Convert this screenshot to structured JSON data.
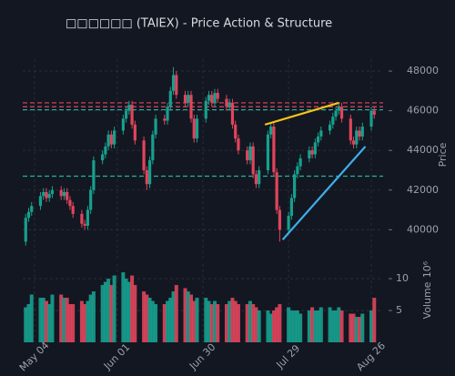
{
  "chart_data": {
    "type": "candlestick",
    "title": "□□□□□□ (TAIEX) - Price Action & Structure",
    "ylabel": "Price",
    "volume_ylabel": "Volume",
    "volume_offset": "10⁶",
    "x": [
      "05-01",
      "05-02",
      "05-03",
      "05-06",
      "05-07",
      "05-08",
      "05-09",
      "05-10",
      "05-13",
      "05-14",
      "05-15",
      "05-16",
      "05-17",
      "05-20",
      "05-21",
      "05-22",
      "05-23",
      "05-24",
      "05-27",
      "05-28",
      "05-29",
      "05-30",
      "05-31",
      "06-03",
      "06-04",
      "06-05",
      "06-06",
      "06-07",
      "06-10",
      "06-11",
      "06-12",
      "06-13",
      "06-14",
      "06-17",
      "06-18",
      "06-19",
      "06-20",
      "06-21",
      "06-24",
      "06-25",
      "06-26",
      "06-27",
      "06-28",
      "07-01",
      "07-02",
      "07-03",
      "07-04",
      "07-05",
      "07-08",
      "07-09",
      "07-10",
      "07-11",
      "07-12",
      "07-15",
      "07-16",
      "07-17",
      "07-18",
      "07-19",
      "07-22",
      "07-23",
      "07-24",
      "07-25",
      "07-26",
      "07-29",
      "07-30",
      "07-31",
      "08-01",
      "08-02",
      "08-05",
      "08-06",
      "08-07",
      "08-08",
      "08-09",
      "08-12",
      "08-13",
      "08-14",
      "08-15",
      "08-16",
      "08-19",
      "08-20",
      "08-21",
      "08-22",
      "08-23",
      "08-26",
      "08-27"
    ],
    "open": [
      39400,
      40600,
      40900,
      41200,
      41700,
      41900,
      41600,
      41800,
      42000,
      41700,
      41900,
      41500,
      41200,
      40800,
      40300,
      40200,
      41000,
      42000,
      43500,
      43800,
      44200,
      44800,
      44300,
      45000,
      45600,
      46000,
      46300,
      45300,
      44500,
      43000,
      42300,
      43500,
      44800,
      45600,
      45500,
      46200,
      47000,
      47800,
      46800,
      46400,
      46800,
      45600,
      44600,
      45600,
      46500,
      46800,
      46400,
      46900,
      46600,
      46200,
      46400,
      45300,
      44600,
      44000,
      43500,
      44200,
      42800,
      42300,
      43000,
      44800,
      45200,
      42900,
      41000,
      40000,
      40700,
      41600,
      42800,
      43200,
      43600,
      44000,
      43800,
      44400,
      44700,
      45000,
      45300,
      45700,
      46000,
      46200,
      45600,
      44500,
      44300,
      45000,
      44700,
      45200,
      46000
    ],
    "high": [
      40800,
      41100,
      41400,
      41900,
      42100,
      42100,
      42000,
      42200,
      42200,
      42100,
      42100,
      41700,
      41400,
      41000,
      40500,
      41200,
      42200,
      43700,
      44000,
      44400,
      45000,
      45000,
      45200,
      45800,
      46200,
      46500,
      46500,
      45500,
      44700,
      43200,
      43700,
      45000,
      45800,
      45800,
      46400,
      47200,
      48200,
      48000,
      47000,
      47000,
      47000,
      45800,
      45800,
      46700,
      47000,
      47000,
      47100,
      47100,
      46800,
      46600,
      46600,
      45500,
      44800,
      44200,
      44400,
      44400,
      43000,
      43200,
      45000,
      45400,
      45400,
      43100,
      41200,
      40900,
      41800,
      43000,
      43400,
      43800,
      44200,
      44200,
      44600,
      44900,
      45200,
      45500,
      45900,
      46200,
      46400,
      46400,
      45800,
      44700,
      45200,
      45200,
      45400,
      46200,
      46200
    ],
    "low": [
      39200,
      40400,
      40700,
      41000,
      41500,
      41400,
      41400,
      41600,
      41500,
      41500,
      41300,
      41000,
      40600,
      40100,
      40000,
      40000,
      40800,
      41800,
      43300,
      43600,
      44000,
      44100,
      44100,
      44800,
      45400,
      45800,
      45100,
      44300,
      42800,
      42000,
      42100,
      43300,
      44600,
      45300,
      45300,
      46000,
      46800,
      46600,
      46200,
      46200,
      45400,
      44400,
      44400,
      45400,
      46300,
      46200,
      46200,
      46400,
      46000,
      46000,
      45100,
      44400,
      43800,
      43300,
      43300,
      42600,
      42100,
      42100,
      42800,
      44600,
      42700,
      40800,
      39400,
      39800,
      40500,
      41400,
      42600,
      43000,
      43400,
      43600,
      43600,
      44200,
      44500,
      44800,
      45100,
      45500,
      45800,
      45400,
      44300,
      44100,
      44100,
      44500,
      44500,
      45000,
      45600
    ],
    "close": [
      40600,
      40900,
      41200,
      41700,
      41900,
      41600,
      41800,
      42000,
      41700,
      41900,
      41500,
      41200,
      40800,
      40300,
      40200,
      41000,
      42000,
      43500,
      43800,
      44200,
      44800,
      44300,
      45000,
      45600,
      46000,
      46300,
      45300,
      44500,
      43000,
      42300,
      43500,
      44800,
      45600,
      45500,
      46200,
      47000,
      47800,
      46800,
      46400,
      46800,
      45600,
      44600,
      45600,
      46500,
      46800,
      46400,
      46900,
      46600,
      46200,
      46400,
      45300,
      44600,
      44000,
      43500,
      44200,
      42800,
      42300,
      43000,
      44800,
      45200,
      42900,
      41000,
      40000,
      40700,
      41600,
      42800,
      43200,
      43600,
      44000,
      43800,
      44400,
      44700,
      45000,
      45300,
      45700,
      46000,
      46200,
      45600,
      44500,
      44300,
      45000,
      44700,
      45200,
      46000,
      45800
    ],
    "volume": [
      5.5,
      6,
      7.5,
      7,
      7,
      6.5,
      6,
      7.5,
      7.5,
      7,
      7,
      6,
      6,
      6.5,
      6,
      6.5,
      7.5,
      8,
      9,
      9.5,
      10,
      9,
      10.5,
      11,
      10,
      9.5,
      10.5,
      9,
      8,
      7.5,
      7,
      6.5,
      6,
      6,
      6.5,
      7,
      8,
      9,
      8.5,
      8,
      7.5,
      6.5,
      7,
      7,
      6.5,
      6,
      6.5,
      6,
      6,
      6.5,
      7,
      6.5,
      6,
      6,
      6.5,
      6,
      5.5,
      5,
      5,
      4.5,
      5,
      5.5,
      6,
      5.5,
      5,
      5,
      5,
      4.5,
      5,
      5.5,
      5,
      5,
      5.5,
      5.5,
      5,
      5,
      5.5,
      5,
      4.5,
      4.5,
      4,
      4,
      4.5,
      5,
      7
    ],
    "xlim": [
      "04-30",
      "08-30"
    ],
    "xticks": [
      {
        "value": "05-04",
        "label": "May 04"
      },
      {
        "value": "06-01",
        "label": "Jun 01"
      },
      {
        "value": "06-30",
        "label": "Jun 30"
      },
      {
        "value": "07-29",
        "label": "Jul 29"
      },
      {
        "value": "08-26",
        "label": "Aug 26"
      }
    ],
    "ylim": [
      38500,
      48600
    ],
    "yticks": [
      40000,
      42000,
      44000,
      46000,
      48000
    ],
    "volume_ylim": [
      0,
      12.3
    ],
    "volume_yticks": [
      5,
      10
    ],
    "up_color": "#17a08e",
    "down_color": "#e0455c",
    "grid": true,
    "hlines": [
      {
        "value": 46400,
        "color": "#e0455c"
      },
      {
        "value": 46200,
        "color": "#e0455c"
      },
      {
        "value": 46050,
        "color": "#22b3a0"
      },
      {
        "value": 42700,
        "color": "#22b3a0"
      }
    ],
    "trendlines": [
      {
        "x": [
          "07-21",
          "08-15"
        ],
        "y": [
          45300,
          46400
        ],
        "color": "#f5c518"
      },
      {
        "x": [
          "07-27",
          "08-24"
        ],
        "y": [
          39500,
          44200
        ],
        "color": "#3daee9"
      }
    ]
  }
}
